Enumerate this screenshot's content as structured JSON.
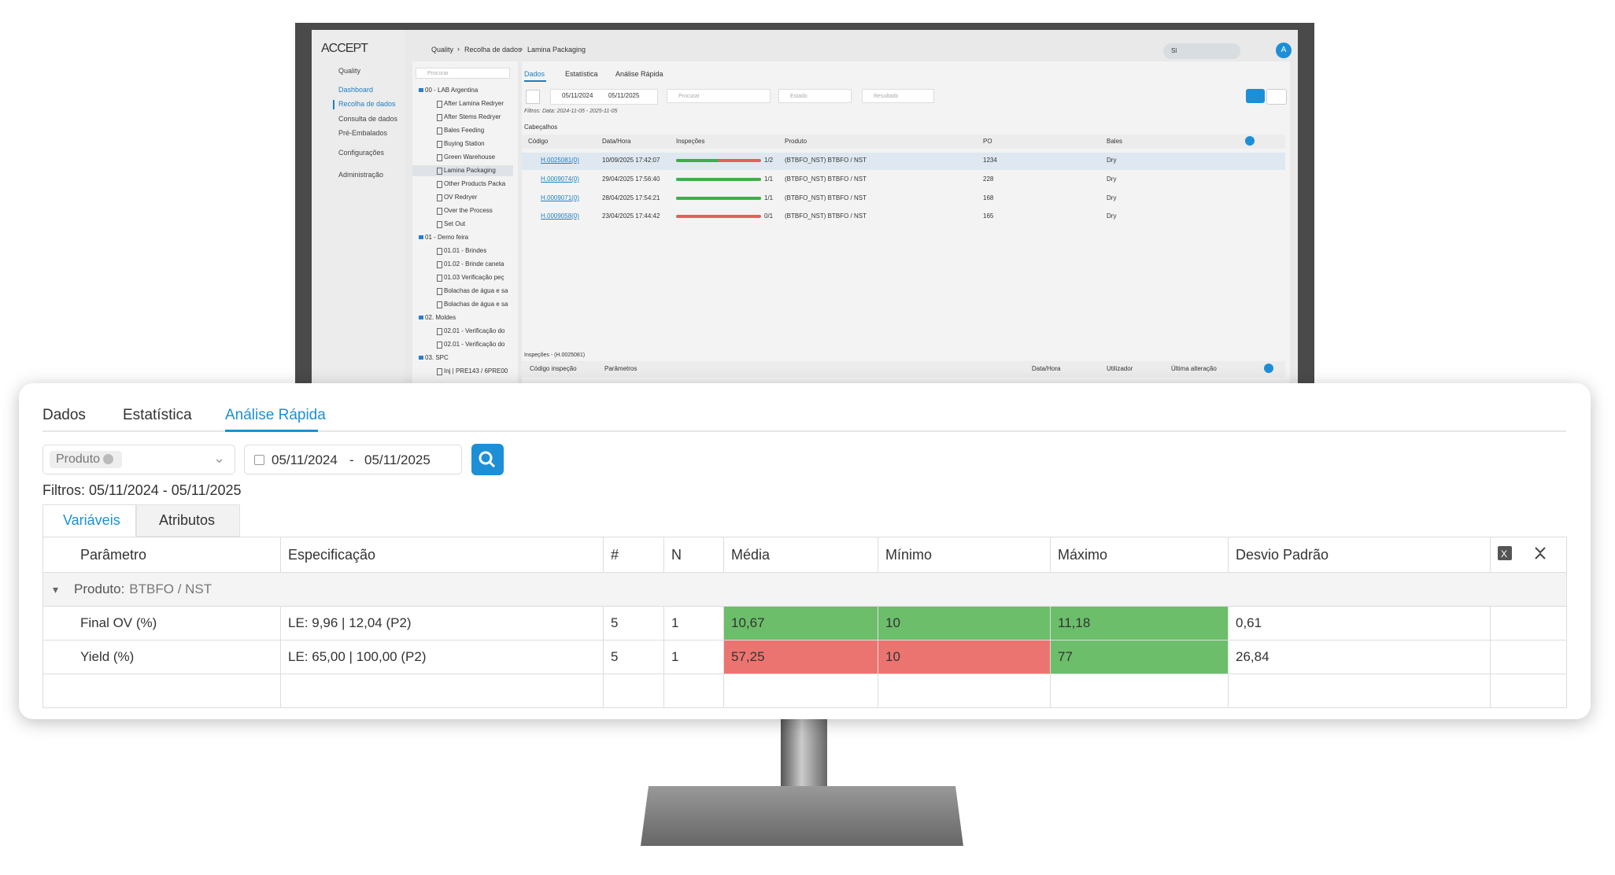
{
  "monitor": {
    "header": {
      "logo": "ACCEPT",
      "breadcrumb": [
        "Quality",
        "Recolha de dados",
        "Lamina Packaging"
      ],
      "search": "Sl",
      "avatar": "A"
    },
    "sidebar": [
      "Quality",
      "Dashboard",
      "Recolha de dados",
      "Consulta de dados",
      "Pré-Embalados",
      "Configurações",
      "Administração"
    ],
    "tree": {
      "search": "Procurar",
      "groups": [
        {
          "label": "00 - LAB Argentina",
          "children": [
            "After Lamina Redryer",
            "After Stems Redryer",
            "Bales Feeding",
            "Buying Station",
            "Green Warehouse",
            "Lamina Packaging",
            "Other Products Packa",
            "OV Redryer",
            "Over the Process",
            "Set Out"
          ]
        },
        {
          "label": "01 - Demo feira",
          "children": [
            "01.01 - Brindes",
            "01.02 - Brinde caneta",
            "01.03 Verificação peç",
            "Bolachas de água e sa",
            "Bolachas de água e sa"
          ]
        },
        {
          "label": "02. Moldes",
          "children": [
            "02.01 - Verificação do",
            "02.01 - Verificação do"
          ]
        },
        {
          "label": "03. SPC",
          "children": [
            "Inj | PRE143 / 6PRE00"
          ]
        }
      ]
    },
    "tabs": [
      "Dados",
      "Estatística",
      "Análise Rápida"
    ],
    "filters": {
      "date_from": "05/11/2024",
      "date_to": "05/11/2025",
      "search": "Procurar",
      "estado": "Estado",
      "resultado": "Resultado",
      "summary": "Filtros: Data: 2024-11-05 - 2025-11-05"
    },
    "headers_title": "Cabeçalhos",
    "columns": [
      "Código",
      "Data/Hora",
      "Inspeções",
      "Produto",
      "PO",
      "Bales"
    ],
    "rows": [
      {
        "codigo": "H.0025081(0)",
        "data": "10/09/2025 17:42:07",
        "passed": 1,
        "total": 2,
        "inspecoes": "1/2",
        "produto": "(BTBFO_NST) BTBFO / NST",
        "po": 1234,
        "bales": "Dry"
      },
      {
        "codigo": "H.0009074(0)",
        "data": "29/04/2025 17:56:40",
        "passed": 1,
        "total": 1,
        "inspecoes": "1/1",
        "produto": "(BTBFO_NST) BTBFO / NST",
        "po": 228,
        "bales": "Dry"
      },
      {
        "codigo": "H.0009071(0)",
        "data": "28/04/2025 17:54:21",
        "passed": 1,
        "total": 1,
        "inspecoes": "1/1",
        "produto": "(BTBFO_NST) BTBFO / NST",
        "po": 168,
        "bales": "Dry"
      },
      {
        "codigo": "H.0009058(0)",
        "data": "23/04/2025 17:44:42",
        "passed": 0,
        "total": 1,
        "inspecoes": "0/1",
        "produto": "(BTBFO_NST) BTBFO / NST",
        "po": 165,
        "bales": "Dry"
      }
    ],
    "inspections": {
      "title": "Inspeções - (H.0025081)",
      "columns": [
        "Código inspeção",
        "Parâmetros",
        "Data/Hora",
        "Utilizador",
        "Última alteração"
      ]
    }
  },
  "panel": {
    "tabs": [
      "Dados",
      "Estatística",
      "Análise Rápida"
    ],
    "product_select": "Produto",
    "date_from": "05/11/2024",
    "date_to": "05/11/2025",
    "filters": "Filtros: 05/11/2024 - 05/11/2025",
    "subtabs": [
      "Variáveis",
      "Atributos"
    ],
    "columns": [
      "Parâmetro",
      "Especificação",
      "#",
      "N",
      "Média",
      "Mínimo",
      "Máximo",
      "Desvio Padrão"
    ],
    "group": {
      "label": "Produto:",
      "value": "BTBFO / NST"
    },
    "rows": [
      {
        "parametro": "Final OV (%)",
        "especificacao": "LE: 9,96 | 12,04 (P2)",
        "count": 5,
        "n": 1,
        "media": {
          "text": "10,67",
          "color": "#6cbe6a"
        },
        "minimo": {
          "text": "10",
          "color": "#6cbe6a"
        },
        "maximo": {
          "text": "11,18",
          "color": "#6cbe6a"
        },
        "desvio": "0,61"
      },
      {
        "parametro": "Yield (%)",
        "especificacao": "LE: 65,00 | 100,00 (P2)",
        "count": 5,
        "n": 1,
        "media": {
          "text": "57,25",
          "color": "#ec7470"
        },
        "minimo": {
          "text": "10",
          "color": "#ec7470"
        },
        "maximo": {
          "text": "77",
          "color": "#6cbe6a"
        },
        "desvio": "26,84"
      }
    ]
  }
}
